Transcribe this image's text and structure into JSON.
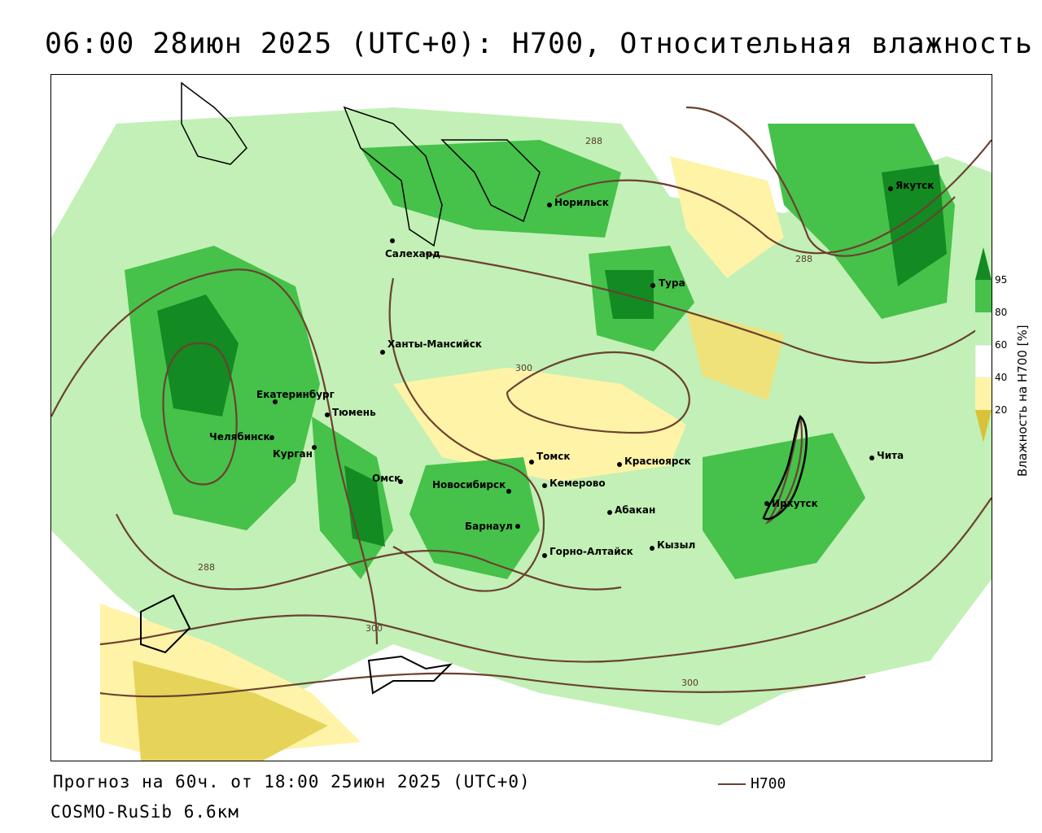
{
  "title": "06:00 28июн 2025 (UTC+0): H700, Относительная влажность",
  "footer": {
    "forecast": "Прогноз на 60ч. от 18:00 25июн 2025 (UTC+0)",
    "model": "COSMO-RuSib 6.6км"
  },
  "legend": {
    "line_label": "H700",
    "line_color": "#6b4130"
  },
  "colorbar": {
    "title": "Влажность на H700 [%]",
    "ticks": [
      "95",
      "80",
      "60",
      "40",
      "20"
    ],
    "colors": {
      "95": "#138a22",
      "80": "#46c14a",
      "60": "#c2f0b6",
      "40": "#ffffff",
      "20": "#fff3a8",
      "below": "#d9c238"
    }
  },
  "cities": [
    {
      "name": "Якутск"
    },
    {
      "name": "Норильск"
    },
    {
      "name": "Салехард"
    },
    {
      "name": "Тура"
    },
    {
      "name": "Ханты-Мансийск"
    },
    {
      "name": "Екатеринбург"
    },
    {
      "name": "Тюмень"
    },
    {
      "name": "Челябинск"
    },
    {
      "name": "Курган"
    },
    {
      "name": "Омск"
    },
    {
      "name": "Томск"
    },
    {
      "name": "Красноярск"
    },
    {
      "name": "Новосибирск"
    },
    {
      "name": "Кемерово"
    },
    {
      "name": "Абакан"
    },
    {
      "name": "Барнаул"
    },
    {
      "name": "Горно-Алтайск"
    },
    {
      "name": "Кызыл"
    },
    {
      "name": "Иркутск"
    },
    {
      "name": "Чита"
    }
  ],
  "isolines": [
    "288",
    "288",
    "300",
    "288",
    "300",
    "300"
  ]
}
